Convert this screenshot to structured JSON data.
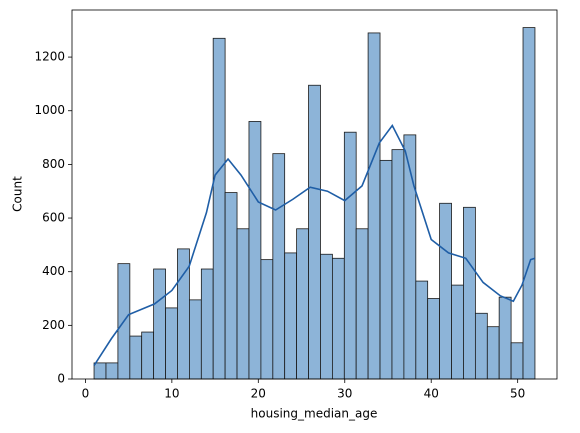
{
  "chart_data": {
    "type": "histogram",
    "xlabel": "housing_median_age",
    "ylabel": "Count",
    "bins": [
      1,
      2.38,
      3.76,
      5.14,
      6.51,
      7.89,
      9.27,
      10.65,
      12.03,
      13.41,
      14.78,
      16.16,
      17.54,
      18.92,
      20.3,
      21.68,
      23.05,
      24.43,
      25.81,
      27.19,
      28.57,
      29.95,
      31.32,
      32.7,
      34.08,
      35.46,
      36.84,
      38.22,
      39.59,
      40.97,
      42.35,
      43.73,
      45.11,
      46.49,
      47.86,
      49.24,
      50.62,
      52
    ],
    "counts": [
      60,
      60,
      430,
      160,
      175,
      410,
      265,
      485,
      295,
      410,
      1270,
      695,
      560,
      960,
      445,
      840,
      470,
      560,
      1095,
      465,
      450,
      920,
      560,
      1290,
      815,
      855,
      910,
      365,
      300,
      655,
      350,
      640,
      245,
      195,
      305,
      135,
      1310
    ],
    "color": "#8db4d8",
    "edgecolor": "#1a1a1a",
    "kde": {
      "color": "#1f5ea6",
      "x": [
        1,
        3,
        5,
        8,
        10,
        12,
        14,
        15,
        16.5,
        18,
        20,
        22,
        24,
        26,
        28,
        30,
        32,
        34,
        35.5,
        37,
        38,
        40,
        42,
        44,
        46,
        48,
        49.5,
        50.5,
        51.5,
        52
      ],
      "values": [
        50,
        150,
        240,
        280,
        330,
        420,
        620,
        760,
        820,
        760,
        660,
        630,
        670,
        715,
        700,
        665,
        720,
        880,
        945,
        850,
        720,
        520,
        470,
        450,
        360,
        310,
        290,
        350,
        445,
        450
      ]
    },
    "xlim": [
      -1.55,
      54.55
    ],
    "ylim": [
      0,
      1375.5
    ],
    "xticks": [
      0,
      10,
      20,
      30,
      40,
      50
    ],
    "yticks": [
      0,
      200,
      400,
      600,
      800,
      1000,
      1200
    ]
  }
}
